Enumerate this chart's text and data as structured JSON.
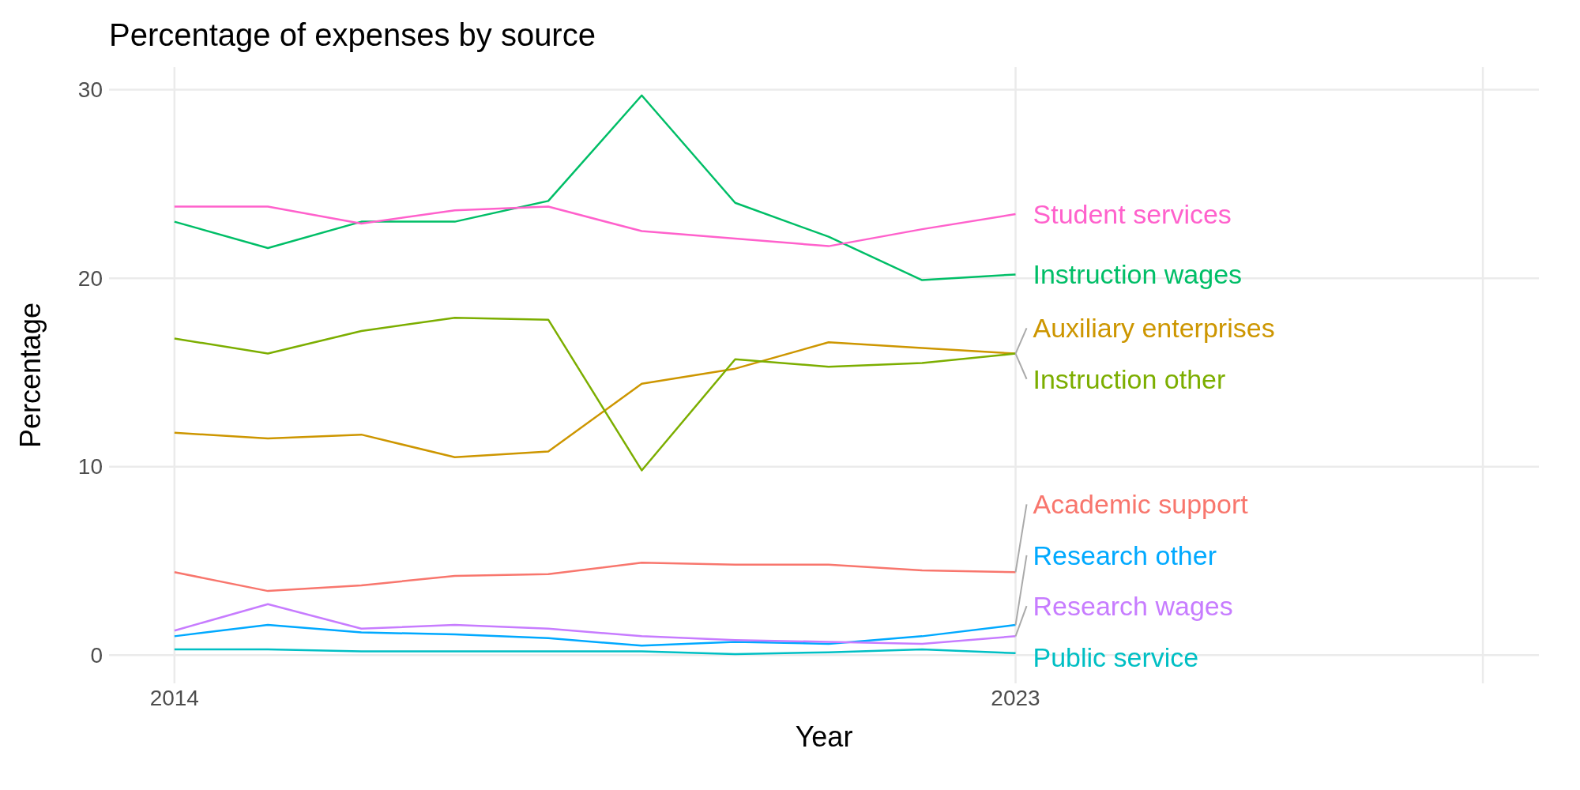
{
  "chart_data": {
    "type": "line",
    "title": "Percentage of expenses by source",
    "xlabel": "Year",
    "ylabel": "Percentage",
    "x": [
      2014,
      2015,
      2016,
      2017,
      2018,
      2019,
      2020,
      2021,
      2022,
      2023
    ],
    "xlim": [
      2013.3,
      2028.6
    ],
    "xticks": [
      2014,
      2023,
      {
        "value": 2028,
        "label": null
      }
    ],
    "ylim": [
      -1.5,
      31.2
    ],
    "yticks": [
      0,
      10,
      20,
      30
    ],
    "grid": true,
    "legend": false,
    "marker": "none",
    "line_style": "solid",
    "series": [
      {
        "name": "Academic support",
        "color": "#f8766d",
        "values": [
          4.4,
          3.4,
          3.7,
          4.2,
          4.3,
          4.9,
          4.8,
          4.8,
          4.5,
          4.4
        ]
      },
      {
        "name": "Auxiliary enterprises",
        "color": "#cd9600",
        "values": [
          11.8,
          11.5,
          11.7,
          10.5,
          10.8,
          14.4,
          15.2,
          16.6,
          16.3,
          16.0
        ]
      },
      {
        "name": "Instruction other",
        "color": "#7cae00",
        "values": [
          16.8,
          16.0,
          17.2,
          17.9,
          17.8,
          9.8,
          15.7,
          15.3,
          15.5,
          16.0
        ]
      },
      {
        "name": "Instruction wages",
        "color": "#00be67",
        "values": [
          23.0,
          21.6,
          23.0,
          23.0,
          24.1,
          29.7,
          24.0,
          22.2,
          19.9,
          20.2
        ]
      },
      {
        "name": "Public service",
        "color": "#00bfc4",
        "values": [
          0.3,
          0.3,
          0.2,
          0.2,
          0.2,
          0.2,
          0.05,
          0.15,
          0.3,
          0.1
        ]
      },
      {
        "name": "Research other",
        "color": "#00a9ff",
        "values": [
          1.0,
          1.6,
          1.2,
          1.1,
          0.9,
          0.5,
          0.7,
          0.6,
          1.0,
          1.6
        ]
      },
      {
        "name": "Research wages",
        "color": "#c77cff",
        "values": [
          1.3,
          2.7,
          1.4,
          1.6,
          1.4,
          1.0,
          0.8,
          0.7,
          0.6,
          1.0
        ]
      },
      {
        "name": "Student services",
        "color": "#ff61cc",
        "values": [
          23.8,
          23.8,
          22.9,
          23.6,
          23.8,
          22.5,
          22.1,
          21.7,
          22.6,
          23.4
        ]
      }
    ]
  }
}
